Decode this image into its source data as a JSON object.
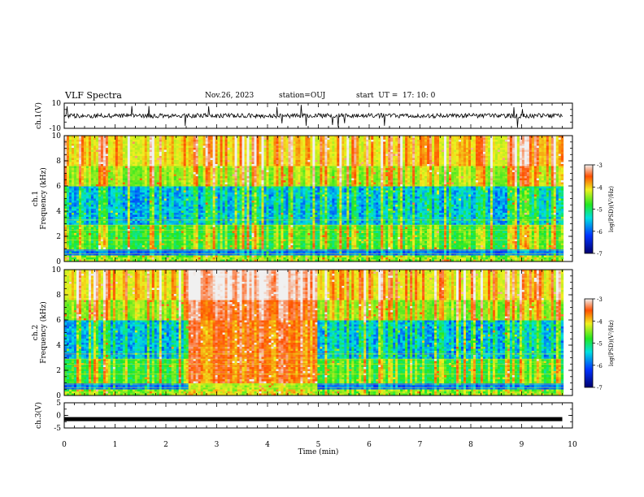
{
  "header": {
    "title": "VLF Spectra",
    "date": "Nov.26, 2023",
    "station": "station=OUJ",
    "start": "start  UT =  17: 10: 0"
  },
  "chart_data": [
    {
      "type": "line",
      "panel": "ch1-waveform",
      "ylabel": "ch.1(V)",
      "ylim": [
        -10,
        10
      ],
      "yticks": [
        "10",
        "-10"
      ],
      "description_values": {
        "baseline": 0,
        "noise_amplitude": 2,
        "spike_max": 10
      },
      "x_range_min": [
        0,
        9.8
      ]
    },
    {
      "type": "heatmap",
      "panel": "ch1-spectrogram",
      "ylabel_top": "ch.1",
      "ylabel": "Frequency (kHz)",
      "ylim": [
        0,
        10
      ],
      "yticks": [
        "0",
        "2",
        "4",
        "6",
        "8",
        "10"
      ],
      "colorbar": {
        "label": "log(PSD)(V²/Hz)",
        "range": [
          -7,
          -3
        ],
        "ticks": [
          "-3",
          "-4",
          "-5",
          "-6",
          "-7"
        ]
      },
      "quiet_window_min": null
    },
    {
      "type": "heatmap",
      "panel": "ch2-spectrogram",
      "ylabel_top": "ch.2",
      "ylabel": "Frequency (kHz)",
      "ylim": [
        0,
        10
      ],
      "yticks": [
        "0",
        "2",
        "4",
        "6",
        "8",
        "10"
      ],
      "colorbar": {
        "label": "log(PSD)(V²/Hz)",
        "range": [
          -7,
          -3
        ],
        "ticks": [
          "-3",
          "-4",
          "-5",
          "-6",
          "-7"
        ]
      },
      "quiet_window_min": [
        2.45,
        5.0
      ]
    },
    {
      "type": "line",
      "panel": "ch3-waveform",
      "ylabel": "ch.3(V)",
      "ylim": [
        -5,
        5
      ],
      "yticks": [
        "5",
        "0",
        "-5"
      ],
      "description_values": {
        "baseline": -1.5
      },
      "x_range_min": [
        0,
        9.8
      ]
    }
  ],
  "x_axis": {
    "label": "Time  (min)",
    "range": [
      0,
      10
    ],
    "ticks": [
      "0",
      "1",
      "2",
      "3",
      "4",
      "5",
      "6",
      "7",
      "8",
      "9",
      "10"
    ]
  },
  "colors": {
    "axis": "#000000",
    "background": "#ffffff"
  }
}
